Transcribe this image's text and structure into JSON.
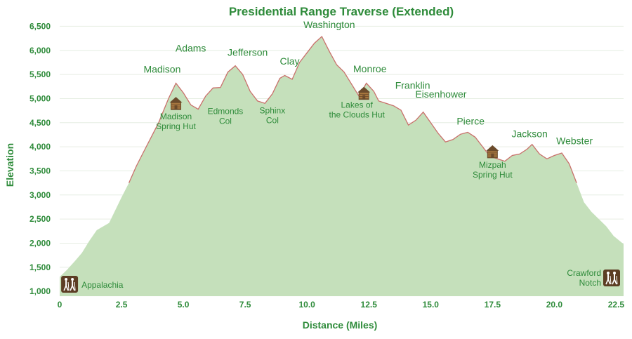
{
  "chart_data": {
    "type": "area",
    "title": "Presidential Range Traverse (Extended)",
    "xlabel": "Distance (Miles)",
    "ylabel": "Elevation",
    "xlim": [
      0,
      22.8
    ],
    "ylim": [
      900,
      6550
    ],
    "x_ticks": [
      0,
      2.5,
      5.0,
      7.5,
      10.0,
      12.5,
      15.0,
      17.5,
      20.0,
      22.5
    ],
    "x_tick_labels": [
      "0",
      "2.5",
      "5.0",
      "7.5",
      "10.0",
      "12.5",
      "15.0",
      "17.5",
      "20.0",
      "22.5"
    ],
    "y_ticks": [
      1000,
      1500,
      2000,
      2500,
      3000,
      3500,
      4000,
      4500,
      5000,
      5500,
      6000,
      6500
    ],
    "y_tick_labels": [
      "1,000",
      "1,500",
      "2,000",
      "2,500",
      "3,000",
      "3,500",
      "4,000",
      "4,500",
      "5,000",
      "5,500",
      "6,000",
      "6,500"
    ],
    "fill_color": "#c5e0bb",
    "line_color": "#c9706b",
    "text_color": "#2e8b3a",
    "icon_color": "#6b4a2b",
    "series": [
      {
        "x": [
          0,
          0.3,
          0.6,
          0.9,
          1.2,
          1.5,
          2.0,
          2.5,
          2.8,
          3.1,
          3.4,
          3.7,
          4.0,
          4.2,
          4.4,
          4.7,
          5.0,
          5.3,
          5.6,
          5.9,
          6.2,
          6.5,
          6.8,
          7.1,
          7.4,
          7.7,
          8.0,
          8.3,
          8.6,
          8.9,
          9.1,
          9.4,
          9.7,
          10.0,
          10.3,
          10.6,
          10.9,
          11.2,
          11.5,
          11.8,
          12.1,
          12.4,
          12.7,
          12.9,
          13.2,
          13.5,
          13.8,
          14.1,
          14.4,
          14.7,
          15.0,
          15.3,
          15.6,
          15.9,
          16.2,
          16.5,
          16.8,
          17.1,
          17.4,
          17.7,
          18.0,
          18.3,
          18.6,
          18.9,
          19.1,
          19.4,
          19.7,
          20.0,
          20.3,
          20.6,
          20.9,
          21.2,
          21.5,
          21.8,
          22.1,
          22.4,
          22.8
        ],
        "y": [
          1300,
          1450,
          1620,
          1800,
          2050,
          2270,
          2420,
          2950,
          3250,
          3600,
          3900,
          4200,
          4500,
          4750,
          5000,
          5320,
          5120,
          4870,
          4780,
          5050,
          5220,
          5230,
          5550,
          5680,
          5500,
          5150,
          4950,
          4900,
          5100,
          5420,
          5480,
          5400,
          5750,
          5950,
          6150,
          6288,
          5980,
          5700,
          5550,
          5300,
          5050,
          5320,
          5150,
          4950,
          4900,
          4850,
          4760,
          4450,
          4550,
          4720,
          4500,
          4280,
          4100,
          4150,
          4260,
          4300,
          4200,
          4000,
          3800,
          3750,
          3700,
          3820,
          3850,
          3950,
          4050,
          3850,
          3750,
          3820,
          3870,
          3650,
          3250,
          2850,
          2650,
          2500,
          2350,
          2150,
          1980
        ]
      }
    ],
    "annotations": [
      {
        "text": "Madison",
        "x": 4.2,
        "y": 5363,
        "kind": "peak"
      },
      {
        "text": "Adams",
        "x": 5.3,
        "y": 5799,
        "kind": "peak"
      },
      {
        "text": "Jefferson",
        "x": 7.6,
        "y": 5716,
        "kind": "peak"
      },
      {
        "text": "Clay",
        "x": 9.3,
        "y": 5533,
        "kind": "peak"
      },
      {
        "text": "Washington",
        "x": 10.9,
        "y": 6288,
        "kind": "peak"
      },
      {
        "text": "Monroe",
        "x": 12.6,
        "y": 5372,
        "kind": "peak"
      },
      {
        "text": "Franklin",
        "x": 14.1,
        "y": 5001,
        "kind": "peak"
      },
      {
        "text": "Eisenhower",
        "x": 15.5,
        "y": 4760,
        "kind": "peak"
      },
      {
        "text": "Pierce",
        "x": 16.7,
        "y": 4312,
        "kind": "peak"
      },
      {
        "text": "Jackson",
        "x": 19.0,
        "y": 4052,
        "kind": "peak"
      },
      {
        "text": "Webster",
        "x": 20.9,
        "y": 3910,
        "kind": "peak"
      },
      {
        "text": "Edmonds",
        "text2": "Col",
        "x": 6.7,
        "y": 4938,
        "kind": "col"
      },
      {
        "text": "Sphinx",
        "text2": "Col",
        "x": 8.6,
        "y": 4959,
        "kind": "col"
      },
      {
        "text": "Madison",
        "text2": "Spring Hut",
        "x": 4.7,
        "y": 4800,
        "kind": "hut"
      },
      {
        "text": "Lakes of",
        "text2": "the Clouds Hut",
        "x": 12.3,
        "y": 5012,
        "kind": "hut"
      },
      {
        "text": "Mizpah",
        "text2": "Spring Hut",
        "x": 17.5,
        "y": 3800,
        "kind": "hut"
      },
      {
        "text": "Appalachia",
        "x": 0.4,
        "y": 1300,
        "kind": "trailhead"
      },
      {
        "text": "Crawford",
        "text2": "Notch",
        "x": 22.4,
        "y": 1900,
        "kind": "trailhead"
      }
    ]
  }
}
